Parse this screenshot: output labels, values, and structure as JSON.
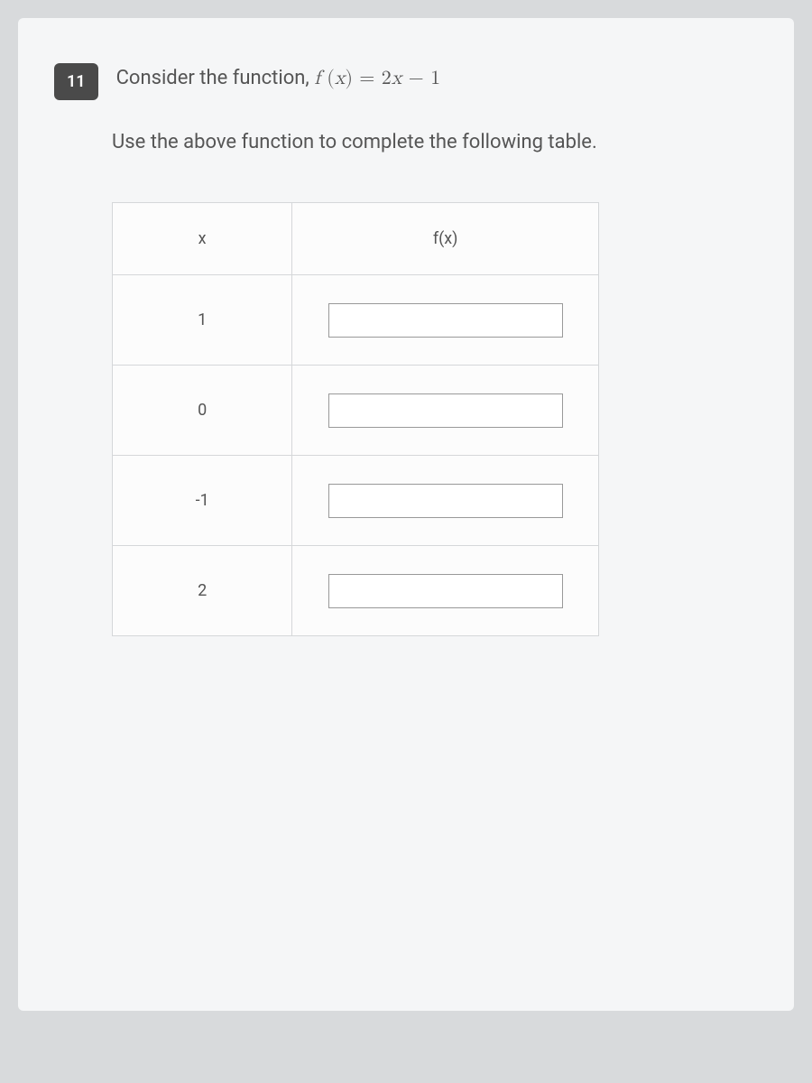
{
  "question": {
    "number": "11",
    "prompt_prefix": "Consider the function, ",
    "function_notation": "f",
    "function_arg": "x",
    "function_equals": " = ",
    "function_rhs_coeff": "2",
    "function_rhs_var": "x",
    "function_rhs_op": " − ",
    "function_rhs_const": "1",
    "instruction": "Use the above function to complete the following table."
  },
  "table": {
    "columns": [
      "x",
      "f(x)"
    ],
    "rows": [
      {
        "x": "1",
        "fx": ""
      },
      {
        "x": "0",
        "fx": ""
      },
      {
        "x": "-1",
        "fx": ""
      },
      {
        "x": "2",
        "fx": ""
      }
    ],
    "border_color": "#d5d7d9",
    "background_color": "#fcfcfc",
    "header_fontsize": 18,
    "cell_fontsize": 18,
    "input_border_color": "#999999",
    "input_background": "#ffffff"
  },
  "layout": {
    "page_background": "#d8dadc",
    "content_background": "#f5f6f7",
    "text_color": "#555555",
    "number_badge_bg": "#4a4a4a",
    "number_badge_fg": "#ffffff"
  }
}
